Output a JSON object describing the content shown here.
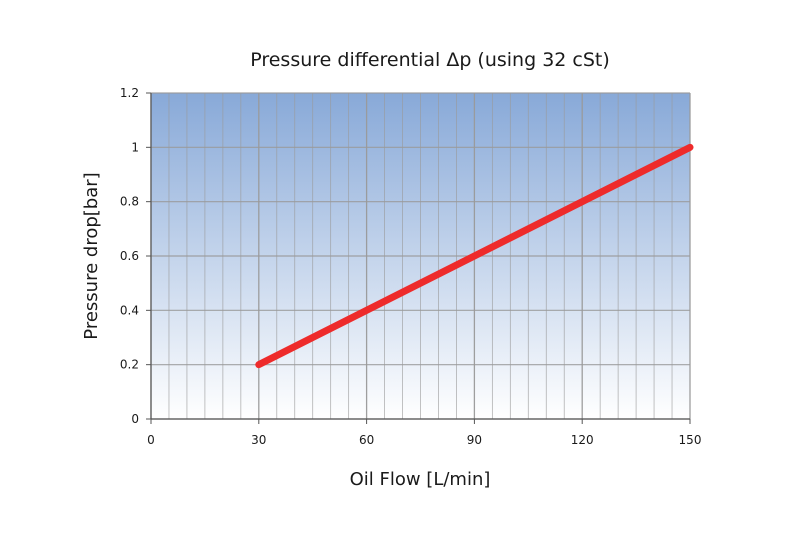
{
  "chart_data": {
    "type": "line",
    "title": "Pressure differential Δp (using 32 cSt)",
    "xlabel": "Oil Flow [L/min]",
    "ylabel": "Pressure drop[bar]",
    "xlim": [
      0,
      150
    ],
    "ylim": [
      0,
      1.2
    ],
    "xticks": [
      0,
      30,
      60,
      90,
      120,
      150
    ],
    "yticks": [
      0,
      0.2,
      0.4,
      0.6,
      0.8,
      1,
      1.2
    ],
    "xtick_labels": [
      "0",
      "30",
      "60",
      "90",
      "120",
      "150"
    ],
    "ytick_labels": [
      "0",
      "0.2",
      "0.4",
      "0.6",
      "0.8",
      "1",
      "1.2"
    ],
    "grid": true,
    "series": [
      {
        "color": "#ee2b2b",
        "x": [
          30,
          150
        ],
        "y": [
          0.2,
          1.0
        ]
      }
    ],
    "colors": {
      "plot_top": "#88a9d8",
      "plot_bottom": "#ffffff",
      "grid": "#9a9a9a",
      "axis": "#555555"
    }
  }
}
